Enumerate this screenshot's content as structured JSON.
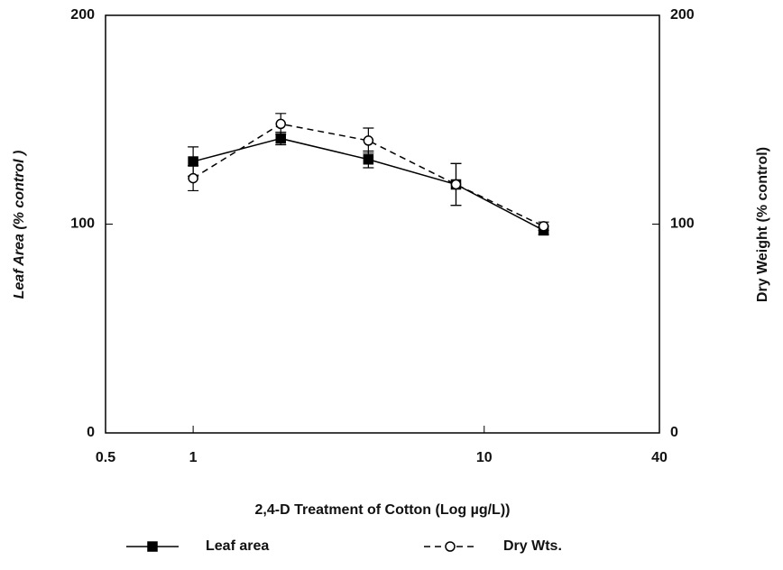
{
  "chart_data": {
    "type": "line",
    "xlabel": "2,4-D Treatment of Cotton (Log µg/L))",
    "ylabel": "Leaf Area (% control )",
    "y2label": "Dry Weight (% control)",
    "x": [
      1,
      2,
      4,
      8,
      16
    ],
    "xscale": "log",
    "xlim": [
      0.5,
      40
    ],
    "xticks": [
      0.5,
      1,
      10,
      40
    ],
    "ylim": [
      0,
      200
    ],
    "yticks": [
      0,
      100,
      200
    ],
    "y2lim": [
      0,
      200
    ],
    "y2ticks": [
      0,
      100,
      200
    ],
    "legend": "bottom",
    "series": [
      {
        "name": "Leaf area",
        "color": "#000000",
        "marker": "square",
        "dash": false,
        "values": [
          130,
          141,
          131,
          119,
          97
        ],
        "errors": [
          7,
          3,
          4,
          10,
          2
        ]
      },
      {
        "name": "Dry Wts.",
        "color": "#000000",
        "marker": "circle",
        "dash": true,
        "axis": "y2",
        "values": [
          122,
          148,
          140,
          119,
          99
        ],
        "errors": [
          6,
          5,
          6,
          10,
          2
        ]
      }
    ]
  }
}
